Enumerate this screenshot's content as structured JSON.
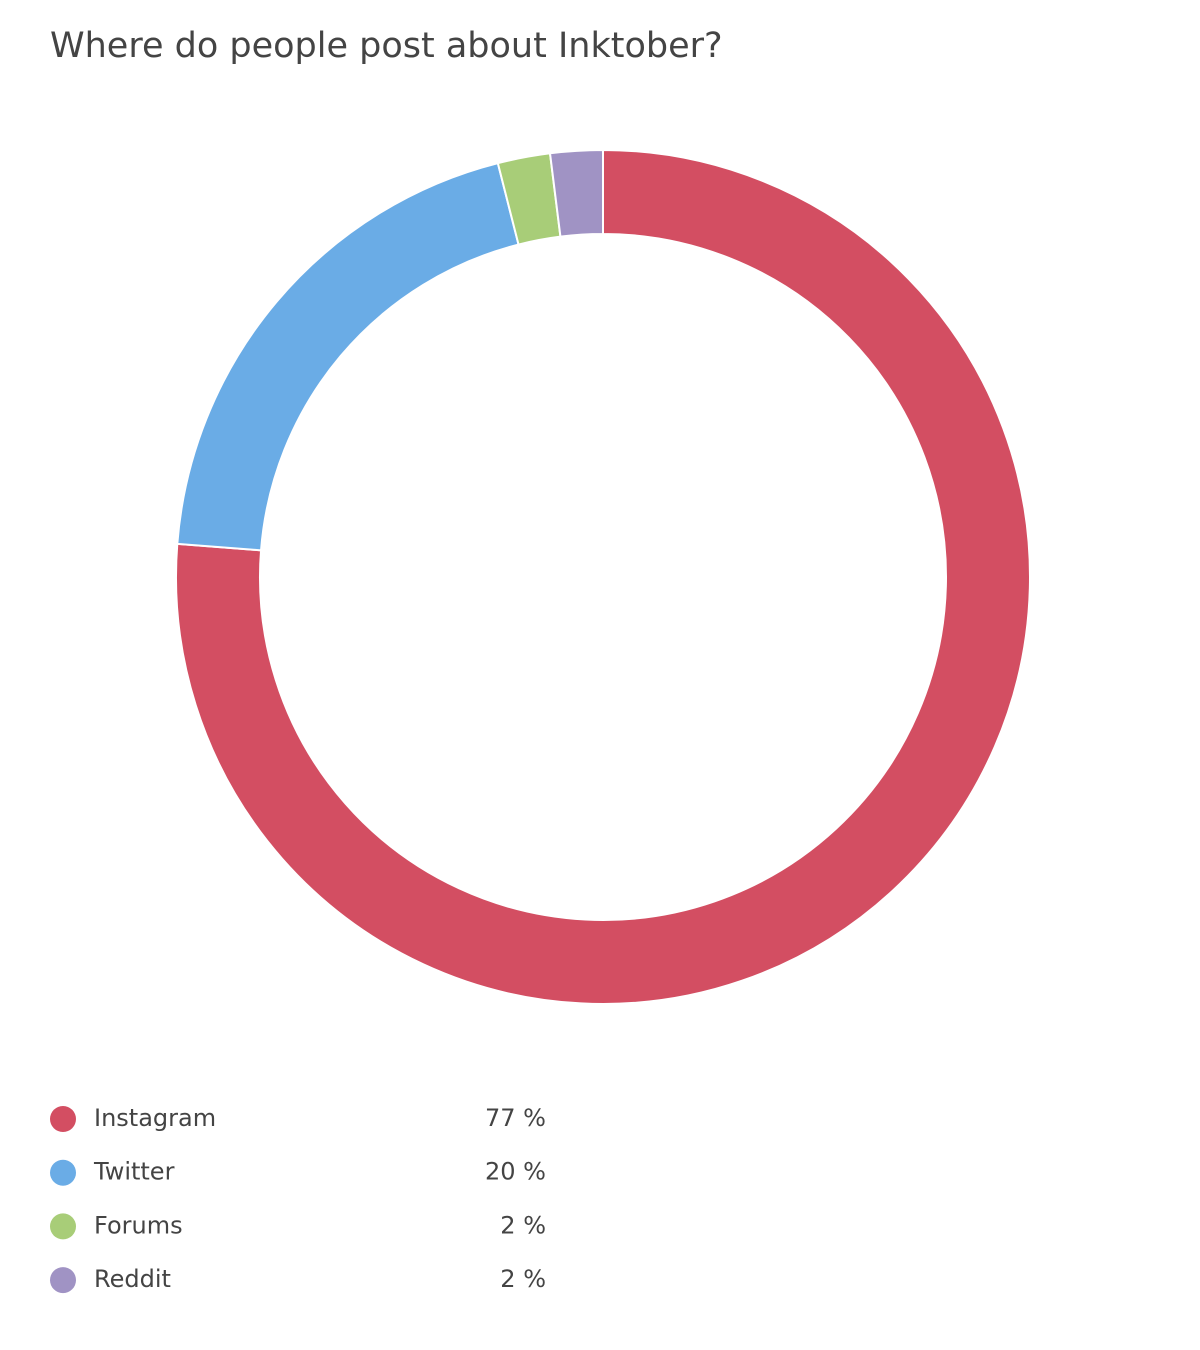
{
  "chart_data": {
    "type": "donut",
    "title": "Where do people post about Inktober?",
    "categories": [
      "Instagram",
      "Twitter",
      "Forums",
      "Reddit"
    ],
    "values": [
      77,
      20,
      2,
      2
    ],
    "value_labels": [
      "77 %",
      "20 %",
      "2 %",
      "2 %"
    ],
    "colors": [
      "#d34e62",
      "#6aace6",
      "#a8cd78",
      "#a093c4"
    ]
  }
}
